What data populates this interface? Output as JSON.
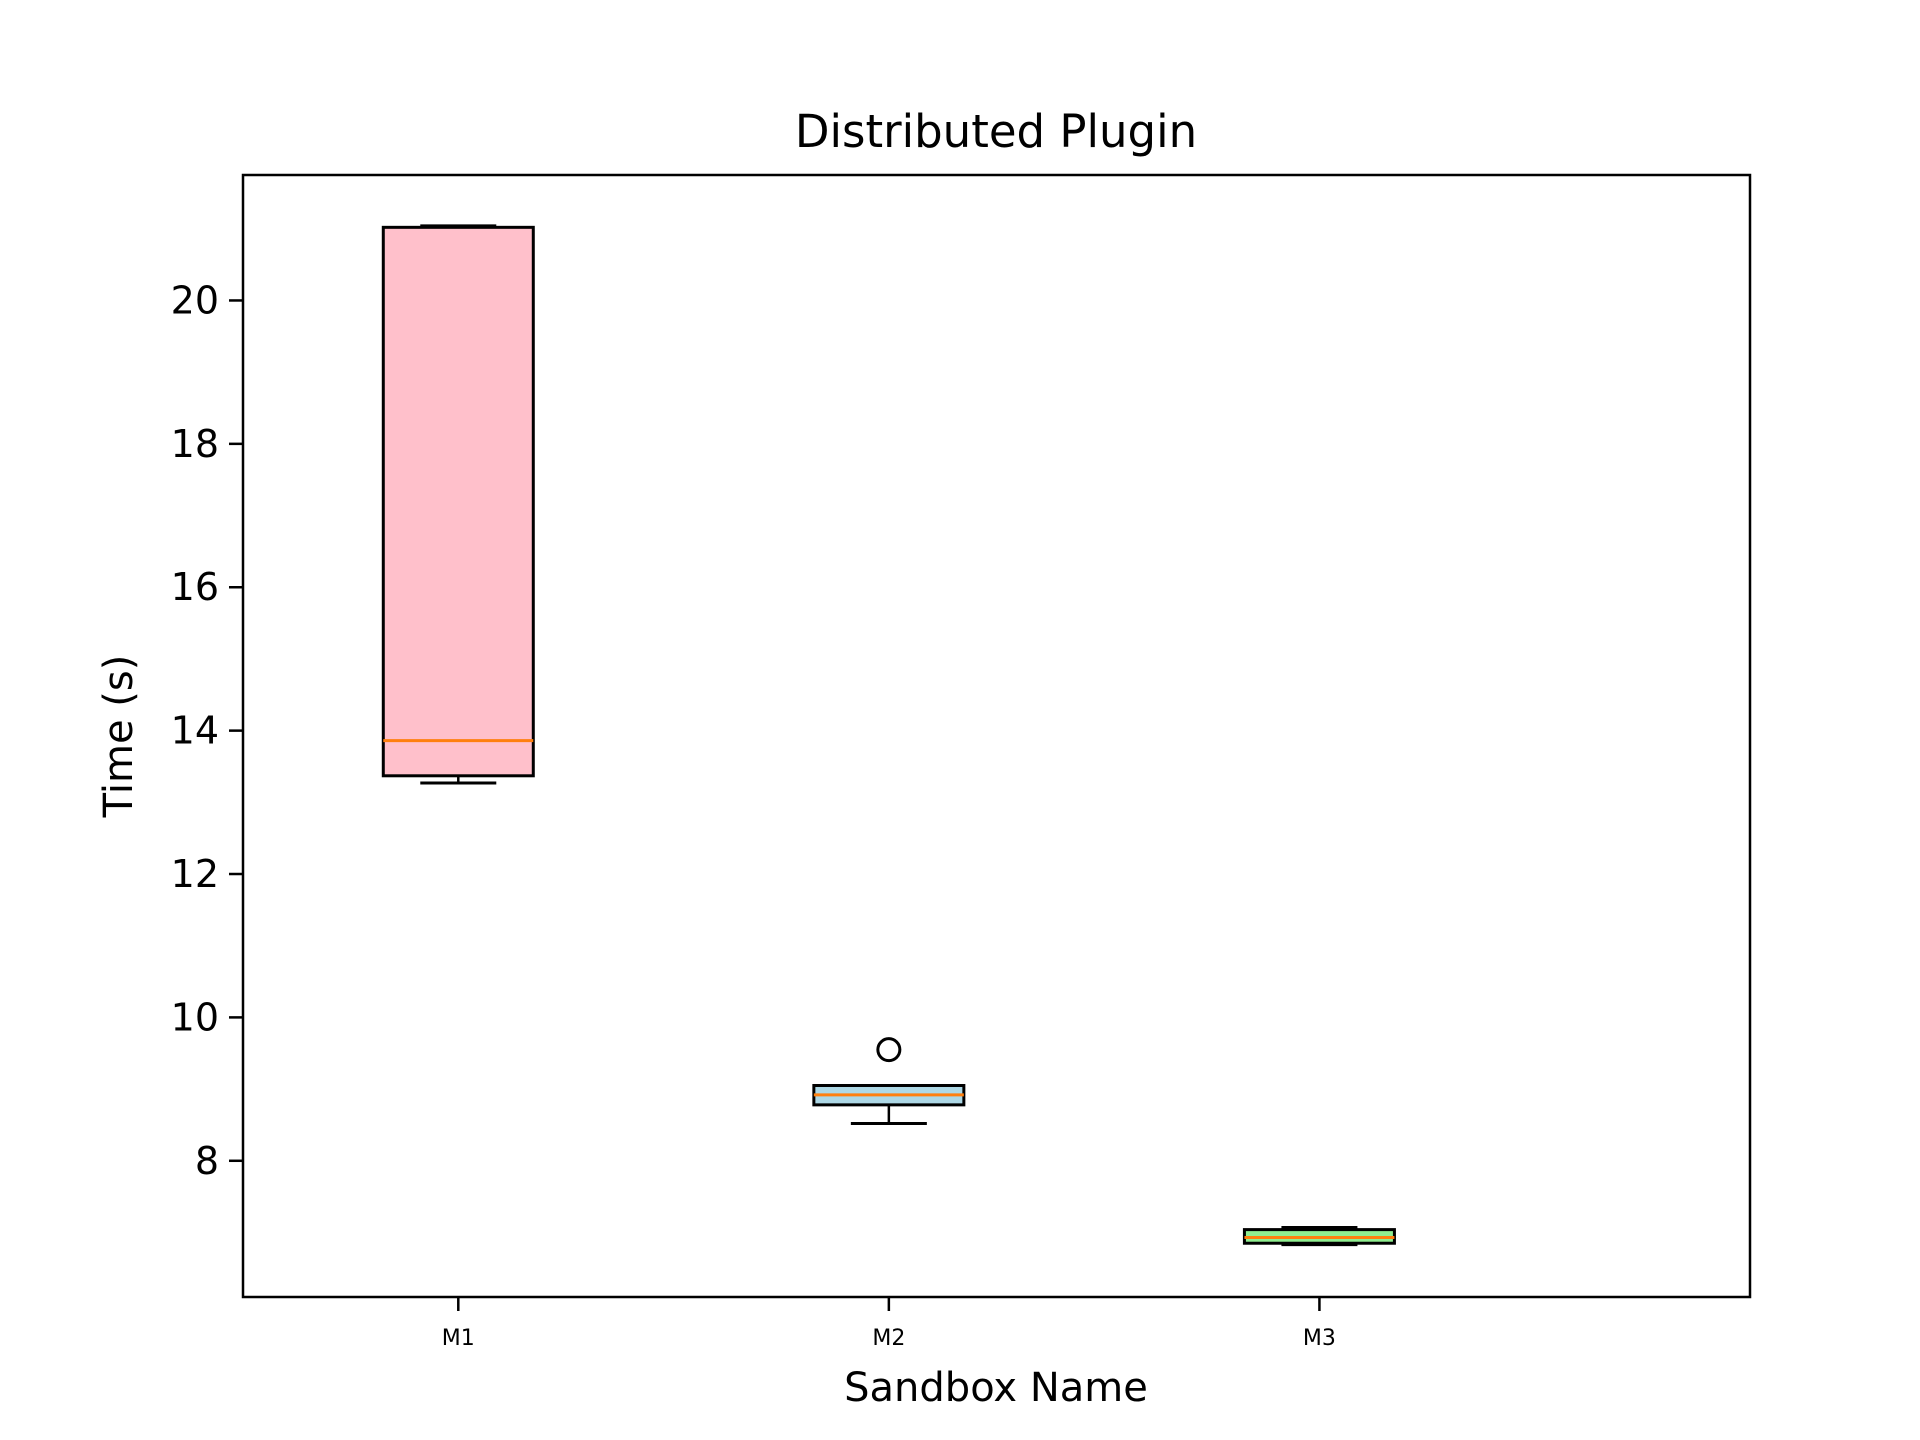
{
  "chart_data": {
    "type": "box",
    "title": "Distributed Plugin",
    "xlabel": "Sandbox Name",
    "ylabel": "Time (s)",
    "categories": [
      "M1",
      "M2",
      "M3"
    ],
    "ylim": [
      6.1,
      21.75
    ],
    "yticks": [
      8,
      10,
      12,
      14,
      16,
      18,
      20
    ],
    "grid": false,
    "boxes": [
      {
        "name": "M1",
        "color": "#ffc0cb",
        "median_color": "#ff7f0e",
        "whisker_low": 13.27,
        "q1": 13.37,
        "median": 13.86,
        "q3": 21.02,
        "whisker_high": 21.04,
        "outliers": []
      },
      {
        "name": "M2",
        "color": "#add8e6",
        "median_color": "#ff7f0e",
        "whisker_low": 8.52,
        "q1": 8.78,
        "median": 8.92,
        "q3": 9.05,
        "whisker_high": 9.05,
        "outliers": [
          9.55
        ]
      },
      {
        "name": "M3",
        "color": "#90ee90",
        "median_color": "#ff7f0e",
        "whisker_low": 6.83,
        "q1": 6.85,
        "median": 6.93,
        "q3": 7.04,
        "whisker_high": 7.07,
        "outliers": []
      }
    ]
  }
}
